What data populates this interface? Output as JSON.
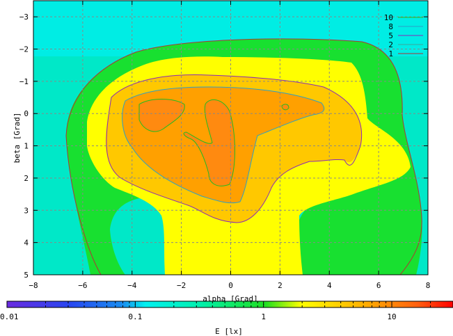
{
  "chart_data": {
    "type": "heatmap",
    "title": "",
    "xlabel": "alpha [Grad]",
    "ylabel": "beta [Grad]",
    "xlim": [
      -8,
      8
    ],
    "ylim": [
      -3.5,
      5
    ],
    "y_inverted": true,
    "x_ticks": [
      -8,
      -6,
      -4,
      -2,
      0,
      2,
      4,
      6,
      8
    ],
    "y_ticks": [
      -3,
      -2,
      -1,
      0,
      1,
      2,
      3,
      4,
      5
    ],
    "grid": true,
    "legend_position": "top-right",
    "contour_levels": [
      {
        "label": "10",
        "value": 10,
        "color": "#22bb22"
      },
      {
        "label": "8",
        "value": 8,
        "color": "#2aa0c8"
      },
      {
        "label": "5",
        "value": 5,
        "color": "#8a2ab8"
      },
      {
        "label": "2",
        "value": 2,
        "color": "#3ca89a"
      },
      {
        "label": "1",
        "value": 1,
        "color": "#b03434"
      }
    ],
    "colorbar": {
      "label": "E [lx]",
      "scale": "log",
      "range": [
        0.01,
        30
      ],
      "tick_labels": [
        "0.01",
        "0.1",
        "1",
        "10"
      ],
      "tick_values": [
        0.01,
        0.1,
        1,
        10
      ]
    },
    "peaks": [
      {
        "x": -3.0,
        "y": -0.2,
        "value": 14
      },
      {
        "x": -0.7,
        "y": 1.6,
        "value": 14
      },
      {
        "x": 2.2,
        "y": -0.1,
        "value": 10
      }
    ]
  }
}
